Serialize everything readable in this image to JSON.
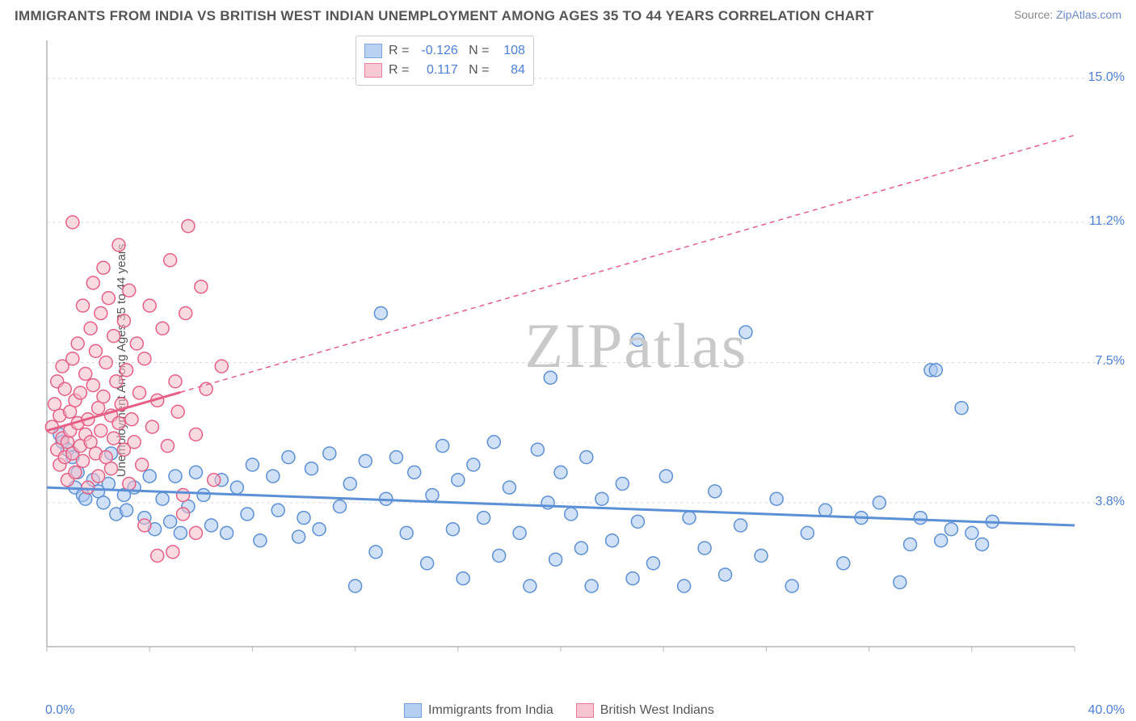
{
  "title": "IMMIGRANTS FROM INDIA VS BRITISH WEST INDIAN UNEMPLOYMENT AMONG AGES 35 TO 44 YEARS CORRELATION CHART",
  "source_label": "Source: ",
  "source_value": "ZipAtlas.com",
  "ylabel": "Unemployment Among Ages 35 to 44 years",
  "watermark": "ZIPatlas",
  "chart": {
    "type": "scatter",
    "xlim": [
      0,
      40
    ],
    "ylim": [
      0,
      16
    ],
    "xtick_min_label": "0.0%",
    "xtick_max_label": "40.0%",
    "ytick_labels": [
      "3.8%",
      "7.5%",
      "11.2%",
      "15.0%"
    ],
    "ytick_values": [
      3.8,
      7.5,
      11.2,
      15.0
    ],
    "grid_color": "#d9d9d9",
    "axis_color": "#b5b5b5",
    "background_color": "#ffffff",
    "marker_radius": 8,
    "marker_stroke_width": 1.5,
    "trendline_width": 3,
    "dashed_pattern": "6,5"
  },
  "series": [
    {
      "name": "Immigrants from India",
      "fill": "#a9c7ef",
      "stroke": "#5b8fd6",
      "fill_opacity": 0.55,
      "R": "-0.126",
      "N": "108",
      "trend": {
        "x1": 0,
        "y1": 4.2,
        "x2": 40,
        "y2": 3.2,
        "dash_from_x": null
      },
      "points": [
        [
          0.5,
          5.6
        ],
        [
          0.6,
          5.4
        ],
        [
          0.8,
          5.2
        ],
        [
          1.0,
          5.0
        ],
        [
          1.1,
          4.2
        ],
        [
          1.2,
          4.6
        ],
        [
          1.4,
          4.0
        ],
        [
          1.5,
          3.9
        ],
        [
          1.8,
          4.4
        ],
        [
          2.0,
          4.1
        ],
        [
          2.2,
          3.8
        ],
        [
          2.4,
          4.3
        ],
        [
          2.5,
          5.1
        ],
        [
          2.7,
          3.5
        ],
        [
          3.0,
          4.0
        ],
        [
          3.1,
          3.6
        ],
        [
          3.4,
          4.2
        ],
        [
          3.8,
          3.4
        ],
        [
          4.0,
          4.5
        ],
        [
          4.2,
          3.1
        ],
        [
          4.5,
          3.9
        ],
        [
          4.8,
          3.3
        ],
        [
          5.0,
          4.5
        ],
        [
          5.2,
          3.0
        ],
        [
          5.5,
          3.7
        ],
        [
          5.8,
          4.6
        ],
        [
          6.1,
          4.0
        ],
        [
          6.4,
          3.2
        ],
        [
          6.8,
          4.4
        ],
        [
          7.0,
          3.0
        ],
        [
          7.4,
          4.2
        ],
        [
          7.8,
          3.5
        ],
        [
          8.0,
          4.8
        ],
        [
          8.3,
          2.8
        ],
        [
          8.8,
          4.5
        ],
        [
          9.0,
          3.6
        ],
        [
          9.4,
          5.0
        ],
        [
          9.8,
          2.9
        ],
        [
          10.0,
          3.4
        ],
        [
          10.3,
          4.7
        ],
        [
          10.6,
          3.1
        ],
        [
          11.0,
          5.1
        ],
        [
          11.4,
          3.7
        ],
        [
          11.8,
          4.3
        ],
        [
          12.0,
          1.6
        ],
        [
          12.4,
          4.9
        ],
        [
          12.8,
          2.5
        ],
        [
          13.0,
          8.8
        ],
        [
          13.2,
          3.9
        ],
        [
          13.6,
          5.0
        ],
        [
          14.0,
          3.0
        ],
        [
          14.3,
          4.6
        ],
        [
          14.8,
          2.2
        ],
        [
          15.0,
          4.0
        ],
        [
          15.4,
          5.3
        ],
        [
          15.8,
          3.1
        ],
        [
          16.0,
          4.4
        ],
        [
          16.2,
          1.8
        ],
        [
          16.6,
          4.8
        ],
        [
          17.0,
          3.4
        ],
        [
          17.4,
          5.4
        ],
        [
          17.6,
          2.4
        ],
        [
          18.0,
          4.2
        ],
        [
          18.4,
          3.0
        ],
        [
          18.8,
          1.6
        ],
        [
          19.1,
          5.2
        ],
        [
          19.5,
          3.8
        ],
        [
          19.6,
          7.1
        ],
        [
          19.8,
          2.3
        ],
        [
          20.0,
          4.6
        ],
        [
          20.4,
          3.5
        ],
        [
          20.8,
          2.6
        ],
        [
          21.0,
          5.0
        ],
        [
          21.2,
          1.6
        ],
        [
          21.6,
          3.9
        ],
        [
          22.0,
          2.8
        ],
        [
          22.4,
          4.3
        ],
        [
          22.8,
          1.8
        ],
        [
          23.0,
          3.3
        ],
        [
          23.0,
          8.1
        ],
        [
          23.6,
          2.2
        ],
        [
          24.1,
          4.5
        ],
        [
          24.8,
          1.6
        ],
        [
          25.0,
          3.4
        ],
        [
          25.6,
          2.6
        ],
        [
          26.0,
          4.1
        ],
        [
          26.4,
          1.9
        ],
        [
          27.0,
          3.2
        ],
        [
          27.2,
          8.3
        ],
        [
          27.8,
          2.4
        ],
        [
          28.4,
          3.9
        ],
        [
          29.0,
          1.6
        ],
        [
          29.6,
          3.0
        ],
        [
          30.3,
          3.6
        ],
        [
          31.0,
          2.2
        ],
        [
          31.7,
          3.4
        ],
        [
          32.4,
          3.8
        ],
        [
          33.2,
          1.7
        ],
        [
          33.6,
          2.7
        ],
        [
          34.0,
          3.4
        ],
        [
          34.4,
          7.3
        ],
        [
          34.6,
          7.3
        ],
        [
          34.8,
          2.8
        ],
        [
          35.2,
          3.1
        ],
        [
          35.6,
          6.3
        ],
        [
          36.0,
          3.0
        ],
        [
          36.4,
          2.7
        ],
        [
          36.8,
          3.3
        ]
      ]
    },
    {
      "name": "British West Indians",
      "fill": "#f6bcc9",
      "stroke": "#e65f85",
      "fill_opacity": 0.55,
      "R": "0.117",
      "N": "84",
      "trend": {
        "x1": 0,
        "y1": 5.7,
        "x2": 40,
        "y2": 13.5,
        "dash_from_x": 5.2
      },
      "points": [
        [
          0.2,
          5.8
        ],
        [
          0.3,
          6.4
        ],
        [
          0.4,
          5.2
        ],
        [
          0.4,
          7.0
        ],
        [
          0.5,
          4.8
        ],
        [
          0.5,
          6.1
        ],
        [
          0.6,
          5.5
        ],
        [
          0.6,
          7.4
        ],
        [
          0.7,
          5.0
        ],
        [
          0.7,
          6.8
        ],
        [
          0.8,
          5.4
        ],
        [
          0.8,
          4.4
        ],
        [
          0.9,
          6.2
        ],
        [
          0.9,
          5.7
        ],
        [
          1.0,
          7.6
        ],
        [
          1.0,
          5.1
        ],
        [
          1.0,
          11.2
        ],
        [
          1.1,
          6.5
        ],
        [
          1.1,
          4.6
        ],
        [
          1.2,
          5.9
        ],
        [
          1.2,
          8.0
        ],
        [
          1.3,
          5.3
        ],
        [
          1.3,
          6.7
        ],
        [
          1.4,
          4.9
        ],
        [
          1.4,
          9.0
        ],
        [
          1.5,
          5.6
        ],
        [
          1.5,
          7.2
        ],
        [
          1.6,
          6.0
        ],
        [
          1.6,
          4.2
        ],
        [
          1.7,
          8.4
        ],
        [
          1.7,
          5.4
        ],
        [
          1.8,
          6.9
        ],
        [
          1.8,
          9.6
        ],
        [
          1.9,
          5.1
        ],
        [
          1.9,
          7.8
        ],
        [
          2.0,
          6.3
        ],
        [
          2.0,
          4.5
        ],
        [
          2.1,
          8.8
        ],
        [
          2.1,
          5.7
        ],
        [
          2.2,
          10.0
        ],
        [
          2.2,
          6.6
        ],
        [
          2.3,
          5.0
        ],
        [
          2.3,
          7.5
        ],
        [
          2.4,
          9.2
        ],
        [
          2.5,
          6.1
        ],
        [
          2.5,
          4.7
        ],
        [
          2.6,
          8.2
        ],
        [
          2.6,
          5.5
        ],
        [
          2.7,
          7.0
        ],
        [
          2.8,
          10.6
        ],
        [
          2.8,
          5.9
        ],
        [
          2.9,
          6.4
        ],
        [
          3.0,
          8.6
        ],
        [
          3.0,
          5.2
        ],
        [
          3.1,
          7.3
        ],
        [
          3.2,
          4.3
        ],
        [
          3.2,
          9.4
        ],
        [
          3.3,
          6.0
        ],
        [
          3.4,
          5.4
        ],
        [
          3.5,
          8.0
        ],
        [
          3.6,
          6.7
        ],
        [
          3.7,
          4.8
        ],
        [
          3.8,
          7.6
        ],
        [
          3.8,
          3.2
        ],
        [
          4.0,
          9.0
        ],
        [
          4.1,
          5.8
        ],
        [
          4.3,
          6.5
        ],
        [
          4.3,
          2.4
        ],
        [
          4.5,
          8.4
        ],
        [
          4.7,
          5.3
        ],
        [
          4.8,
          10.2
        ],
        [
          4.9,
          2.5
        ],
        [
          5.0,
          7.0
        ],
        [
          5.1,
          6.2
        ],
        [
          5.3,
          4.0
        ],
        [
          5.3,
          3.5
        ],
        [
          5.4,
          8.8
        ],
        [
          5.5,
          11.1
        ],
        [
          5.8,
          5.6
        ],
        [
          5.8,
          3.0
        ],
        [
          6.0,
          9.5
        ],
        [
          6.2,
          6.8
        ],
        [
          6.5,
          4.4
        ],
        [
          6.8,
          7.4
        ]
      ]
    }
  ],
  "legend_top_labels": {
    "R": "R =",
    "N": "N ="
  },
  "legend_bottom": [
    {
      "label": "Immigrants from India",
      "fill": "#a9c7ef",
      "stroke": "#5b8fd6"
    },
    {
      "label": "British West Indians",
      "fill": "#f6bcc9",
      "stroke": "#e65f85"
    }
  ]
}
